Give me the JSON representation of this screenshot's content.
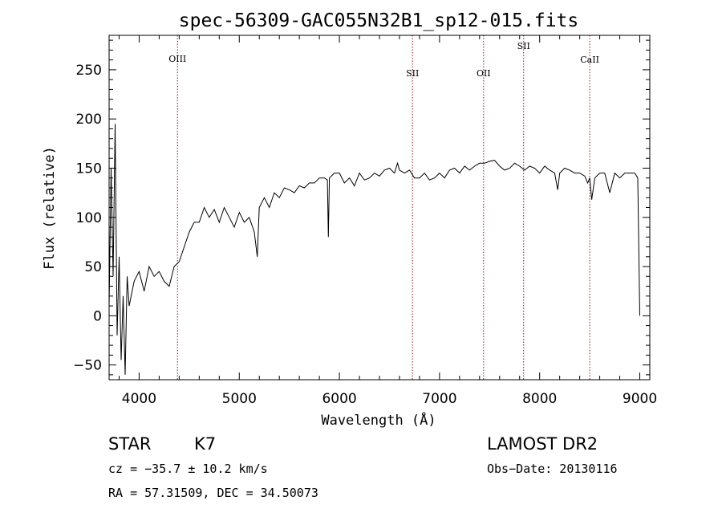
{
  "chart_data": {
    "type": "line",
    "title": "spec-56309-GAC055N32B1_sp12-015.fits",
    "xlabel": "Wavelength (Å)",
    "ylabel": "Flux (relative)",
    "xlim": [
      3700,
      9100
    ],
    "ylim": [
      -65,
      285
    ],
    "x_ticks": [
      4000,
      5000,
      6000,
      7000,
      8000,
      9000
    ],
    "y_ticks": [
      -50,
      0,
      50,
      100,
      150,
      200,
      250
    ],
    "grid": false,
    "colors": {
      "spectrum": "#000000",
      "lines": "#8b1a1a"
    },
    "spectral_lines": [
      {
        "name": "OIII",
        "wavelength": 4383
      },
      {
        "name": "SII",
        "wavelength": 6730
      },
      {
        "name": "OII",
        "wavelength": 7440
      },
      {
        "name": "SII",
        "wavelength": 7840
      },
      {
        "name": "CaII",
        "wavelength": 8500
      }
    ],
    "series": [
      {
        "x": [
          3700,
          3720,
          3740,
          3760,
          3780,
          3800,
          3820,
          3840,
          3860,
          3880,
          3900,
          3950,
          4000,
          4050,
          4100,
          4150,
          4200,
          4250,
          4300,
          4350,
          4400,
          4450,
          4500,
          4550,
          4600,
          4650,
          4700,
          4750,
          4800,
          4850,
          4900,
          4950,
          5000,
          5050,
          5100,
          5150,
          5180,
          5200,
          5250,
          5300,
          5350,
          5400,
          5450,
          5500,
          5550,
          5600,
          5650,
          5700,
          5750,
          5800,
          5850,
          5880,
          5890,
          5900,
          5950,
          6000,
          6050,
          6100,
          6150,
          6200,
          6250,
          6300,
          6350,
          6400,
          6450,
          6500,
          6550,
          6580,
          6600,
          6650,
          6700,
          6750,
          6800,
          6850,
          6900,
          6950,
          7000,
          7050,
          7100,
          7150,
          7200,
          7250,
          7300,
          7350,
          7400,
          7450,
          7500,
          7550,
          7600,
          7650,
          7700,
          7750,
          7800,
          7850,
          7900,
          7950,
          8000,
          8050,
          8100,
          8150,
          8180,
          8200,
          8250,
          8300,
          8350,
          8400,
          8450,
          8480,
          8500,
          8520,
          8550,
          8600,
          8650,
          8700,
          8750,
          8800,
          8850,
          8900,
          8950,
          8980,
          9000
        ],
        "values": [
          10,
          150,
          40,
          195,
          -20,
          60,
          -45,
          20,
          -60,
          40,
          10,
          35,
          45,
          25,
          50,
          40,
          45,
          35,
          30,
          50,
          55,
          70,
          85,
          95,
          95,
          110,
          100,
          108,
          95,
          110,
          100,
          90,
          105,
          95,
          100,
          85,
          60,
          110,
          120,
          110,
          125,
          120,
          130,
          128,
          125,
          132,
          130,
          135,
          135,
          140,
          140,
          138,
          80,
          140,
          145,
          145,
          135,
          140,
          132,
          145,
          138,
          140,
          145,
          142,
          148,
          150,
          145,
          155,
          148,
          145,
          148,
          140,
          140,
          145,
          138,
          140,
          145,
          140,
          148,
          150,
          145,
          152,
          148,
          152,
          155,
          155,
          157,
          158,
          152,
          148,
          150,
          155,
          152,
          148,
          152,
          150,
          145,
          152,
          148,
          145,
          128,
          145,
          150,
          148,
          145,
          145,
          142,
          135,
          140,
          118,
          140,
          145,
          145,
          125,
          145,
          140,
          145,
          145,
          145,
          140,
          0
        ]
      }
    ]
  },
  "footer": {
    "object_class": "STAR",
    "subclass": "K7",
    "survey": "LAMOST DR2",
    "cz": "cz = −35.7 ± 10.2 km/s",
    "obs_date": "Obs−Date: 20130116",
    "coords": "RA =  57.31509, DEC =  34.50073"
  }
}
